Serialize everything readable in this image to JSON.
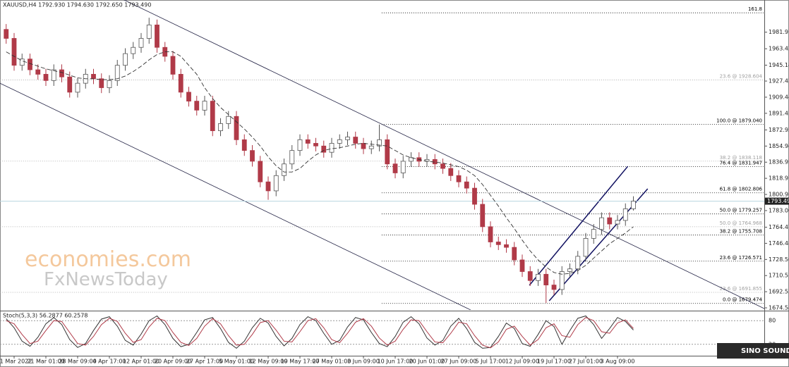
{
  "chart_data": {
    "type": "candlestick",
    "title": "XAUUSD,H4  1792.930 1794.630 1792.650 1793.490",
    "watermark": [
      "economies.com",
      "FxNewsToday"
    ],
    "logo": "SINO SOUND",
    "categories": [
      null,
      "11 Mar 2022",
      null,
      null,
      null,
      "21 Mar 01:00",
      null,
      null,
      null,
      "28 Mar 09:00",
      null,
      null,
      null,
      "4 Apr 17:00",
      null,
      null,
      null,
      "12 Apr 01:00",
      null,
      null,
      null,
      "20 Apr 09:00",
      null,
      null,
      null,
      "27 Apr 17:00",
      null,
      null,
      null,
      "5 May 01:00",
      null,
      null,
      null,
      "12 May 09:00",
      null,
      null,
      null,
      "19 May 17:00",
      null,
      null,
      null,
      "27 May 01:00",
      null,
      null,
      null,
      "3 Jun 09:00",
      null,
      null,
      null,
      "10 Jun 17:00",
      null,
      null,
      null,
      "20 Jun 01:00",
      null,
      null,
      null,
      "27 Jun 09:00",
      null,
      null,
      null,
      "5 Jul 17:00",
      null,
      null,
      null,
      "12 Jul 09:00",
      null,
      null,
      null,
      "19 Jul 17:00",
      null,
      null,
      null,
      "27 Jul 01:00",
      null,
      null,
      null,
      "3 Aug 09:00",
      null,
      null
    ],
    "open": [
      1985,
      1975,
      1945,
      1952,
      1940,
      1935,
      1928,
      1940,
      1932,
      1915,
      1925,
      1935,
      1930,
      1920,
      1928,
      1945,
      1958,
      1965,
      1975,
      1990,
      1965,
      1955,
      1935,
      1915,
      1905,
      1895,
      1905,
      1872,
      1880,
      1888,
      1862,
      1850,
      1838,
      1815,
      1805,
      1822,
      1835,
      1850,
      1862,
      1858,
      1855,
      1848,
      1858,
      1862,
      1865,
      1858,
      1852,
      1855,
      1862,
      1835,
      1825,
      1838,
      1842,
      1838,
      1840,
      1835,
      1830,
      1822,
      1815,
      1808,
      1790,
      1765,
      1748,
      1745,
      1742,
      1728,
      1715,
      1705,
      1712,
      1700,
      1695,
      1715,
      1718,
      1732,
      1752,
      1762,
      1775,
      1768,
      1772,
      1785
    ],
    "high": [
      1991,
      1981,
      1958,
      1958,
      1946,
      1941,
      1946,
      1946,
      1938,
      1931,
      1941,
      1941,
      1936,
      1934,
      1951,
      1964,
      1971,
      1981,
      1998,
      1996,
      1971,
      1961,
      1941,
      1921,
      1911,
      1911,
      1911,
      1886,
      1894,
      1894,
      1868,
      1856,
      1844,
      1821,
      1828,
      1841,
      1856,
      1868,
      1868,
      1864,
      1861,
      1864,
      1868,
      1871,
      1871,
      1864,
      1861,
      1879,
      1868,
      1841,
      1844,
      1848,
      1848,
      1846,
      1846,
      1841,
      1836,
      1828,
      1821,
      1814,
      1796,
      1771,
      1754,
      1751,
      1748,
      1734,
      1721,
      1718,
      1718,
      1706,
      1721,
      1724,
      1738,
      1758,
      1768,
      1781,
      1781,
      1778,
      1791,
      1799
    ],
    "low": [
      1969,
      1939,
      1939,
      1934,
      1929,
      1922,
      1922,
      1926,
      1909,
      1909,
      1919,
      1924,
      1914,
      1914,
      1922,
      1939,
      1952,
      1959,
      1969,
      1959,
      1949,
      1929,
      1909,
      1899,
      1889,
      1889,
      1866,
      1866,
      1874,
      1856,
      1844,
      1832,
      1809,
      1795,
      1799,
      1816,
      1829,
      1844,
      1852,
      1849,
      1842,
      1842,
      1852,
      1856,
      1852,
      1846,
      1846,
      1849,
      1829,
      1819,
      1819,
      1832,
      1832,
      1832,
      1829,
      1824,
      1816,
      1809,
      1802,
      1784,
      1759,
      1742,
      1739,
      1736,
      1722,
      1709,
      1699,
      1699,
      1680,
      1689,
      1689,
      1709,
      1712,
      1726,
      1746,
      1756,
      1762,
      1762,
      1766,
      1783
    ],
    "close": [
      1975,
      1945,
      1952,
      1940,
      1935,
      1928,
      1940,
      1932,
      1915,
      1925,
      1935,
      1930,
      1920,
      1928,
      1945,
      1958,
      1965,
      1975,
      1990,
      1965,
      1955,
      1935,
      1915,
      1905,
      1895,
      1905,
      1872,
      1880,
      1888,
      1862,
      1850,
      1838,
      1815,
      1805,
      1822,
      1835,
      1850,
      1862,
      1858,
      1855,
      1848,
      1858,
      1862,
      1865,
      1858,
      1852,
      1855,
      1862,
      1835,
      1825,
      1838,
      1842,
      1838,
      1840,
      1835,
      1830,
      1822,
      1815,
      1808,
      1790,
      1765,
      1748,
      1745,
      1742,
      1728,
      1715,
      1705,
      1712,
      1700,
      1695,
      1715,
      1718,
      1732,
      1752,
      1762,
      1775,
      1768,
      1772,
      1785,
      1793.49
    ],
    "bull_color": "#555555",
    "bear_color": "#b03a48",
    "ma": {
      "color": "#333333",
      "values": [
        1960,
        1955,
        1950,
        1947,
        1944,
        1941,
        1939,
        1937,
        1934,
        1931,
        1930,
        1930,
        1929,
        1929,
        1930,
        1933,
        1938,
        1944,
        1951,
        1957,
        1960,
        1960,
        1955,
        1945,
        1935,
        1920,
        1908,
        1898,
        1890,
        1882,
        1874,
        1865,
        1855,
        1843,
        1833,
        1826,
        1826,
        1830,
        1838,
        1845,
        1850,
        1852,
        1853,
        1855,
        1857,
        1858,
        1857,
        1856,
        1855,
        1850,
        1845,
        1842,
        1840,
        1838,
        1837,
        1836,
        1834,
        1832,
        1828,
        1822,
        1812,
        1800,
        1788,
        1775,
        1763,
        1750,
        1738,
        1728,
        1720,
        1714,
        1712,
        1713,
        1716,
        1722,
        1730,
        1738,
        1746,
        1752,
        1758,
        1765
      ]
    },
    "ylim": [
      1672.2,
      2017.8
    ],
    "yticks": [
      {
        "value": 1981.91,
        "label": "1981.910"
      },
      {
        "value": 1963.425,
        "label": "1963.425"
      },
      {
        "value": 1945.14,
        "label": "1945.140"
      },
      {
        "value": 1927.425,
        "label": "1927.425"
      },
      {
        "value": 1909.44,
        "label": "1909.440"
      },
      {
        "value": 1891.455,
        "label": "1891.455"
      },
      {
        "value": 1872.925,
        "label": "1872.925"
      },
      {
        "value": 1854.94,
        "label": "1854.940"
      },
      {
        "value": 1836.955,
        "label": "1836.955"
      },
      {
        "value": 1818.97,
        "label": "1818.970"
      },
      {
        "value": 1800.985,
        "label": "1800.985"
      },
      {
        "value": 1783,
        "label": "1783.000"
      },
      {
        "value": 1764.47,
        "label": "1764.470"
      },
      {
        "value": 1746.485,
        "label": "1746.485"
      },
      {
        "value": 1728.5,
        "label": "1728.500"
      },
      {
        "value": 1710.515,
        "label": "1710.515"
      },
      {
        "value": 1692.53,
        "label": "1692.530"
      },
      {
        "value": 1674.545,
        "label": "1674.545"
      }
    ],
    "current_price": {
      "value": 1793.49,
      "label": "1793.490"
    },
    "fib_levels": [
      {
        "label": "161.8",
        "price": 2003.5,
        "start": 47.3,
        "color": "#000000"
      },
      {
        "label": "23.6 @ 1928.604",
        "price": 1928.604,
        "start": -0.8,
        "color": "#a0a0a0"
      },
      {
        "label": "100.0 @ 1879.040",
        "price": 1879.04,
        "start": 47.3,
        "color": "#000000"
      },
      {
        "label": "38.2 @ 1838.118",
        "price": 1838.118,
        "start": -0.8,
        "color": "#a0a0a0"
      },
      {
        "label": "76.4 @ 1831.947",
        "price": 1831.947,
        "start": 47.3,
        "color": "#000000"
      },
      {
        "label": "61.8 @ 1802.806",
        "price": 1802.806,
        "start": 47.3,
        "color": "#000000"
      },
      {
        "label": "50.0 @ 1779.257",
        "price": 1779.257,
        "start": 47.3,
        "color": "#000000"
      },
      {
        "label": "50.0 @ 1764.968",
        "price": 1764.968,
        "start": -0.8,
        "color": "#a0a0a0"
      },
      {
        "label": "38.2 @ 1755.708",
        "price": 1755.708,
        "start": 47.3,
        "color": "#000000"
      },
      {
        "label": "23.6 @ 1726.571",
        "price": 1726.571,
        "start": 47.3,
        "color": "#000000"
      },
      {
        "label": "23.6 @ 1691.855",
        "price": 1691.855,
        "start": -0.8,
        "color": "#a0a0a0"
      },
      {
        "label": "0.0 @ 1679.474",
        "price": 1679.474,
        "start": 47.3,
        "color": "#000000"
      }
    ],
    "trendlines": [
      {
        "start": [
          14.3,
          2020.2
        ],
        "end": [
          95.5,
          1673.7
        ],
        "color": "#222244"
      },
      {
        "start": [
          -0.8,
          1925.1
        ],
        "end": [
          58.5,
          1672.2
        ],
        "color": "#222244"
      },
      {
        "start": [
          65.9,
          1699.7
        ],
        "end": [
          78.3,
          1832.4
        ],
        "color": "#101060"
      },
      {
        "start": [
          68.4,
          1682.4
        ],
        "end": [
          80.8,
          1807.3
        ],
        "color": "#101060"
      }
    ],
    "indicator": {
      "title": "Stoch(5,3,3) 56.2877 60.2578",
      "ylim": [
        0,
        100
      ],
      "yticks": [
        80,
        20
      ],
      "series": [
        {
          "color": "#333333",
          "values": [
            85,
            62,
            28,
            15,
            38,
            72,
            88,
            70,
            32,
            12,
            22,
            55,
            84,
            90,
            66,
            30,
            18,
            46,
            80,
            92,
            70,
            35,
            14,
            20,
            50,
            82,
            88,
            60,
            25,
            10,
            28,
            62,
            86,
            74,
            40,
            16,
            35,
            70,
            90,
            80,
            48,
            20,
            30,
            64,
            88,
            82,
            50,
            22,
            14,
            40,
            76,
            90,
            72,
            36,
            18,
            30,
            66,
            86,
            60,
            25,
            10,
            12,
            40,
            74,
            60,
            22,
            15,
            45,
            80,
            65,
            20,
            55,
            86,
            92,
            70,
            35,
            60,
            88,
            78,
            56.2877
          ]
        },
        {
          "color": "#b03a48",
          "values": [
            80,
            72,
            45,
            22,
            28,
            55,
            80,
            78,
            50,
            22,
            18,
            40,
            70,
            86,
            78,
            48,
            25,
            32,
            64,
            86,
            80,
            50,
            25,
            17,
            35,
            66,
            85,
            72,
            42,
            18,
            20,
            45,
            75,
            80,
            56,
            28,
            26,
            52,
            80,
            85,
            62,
            32,
            24,
            48,
            76,
            85,
            66,
            36,
            18,
            28,
            58,
            82,
            80,
            52,
            26,
            24,
            48,
            76,
            72,
            42,
            18,
            11,
            26,
            58,
            66,
            40,
            18,
            32,
            62,
            72,
            42,
            38,
            70,
            88,
            80,
            52,
            48,
            74,
            82,
            60.2578
          ]
        }
      ]
    }
  }
}
